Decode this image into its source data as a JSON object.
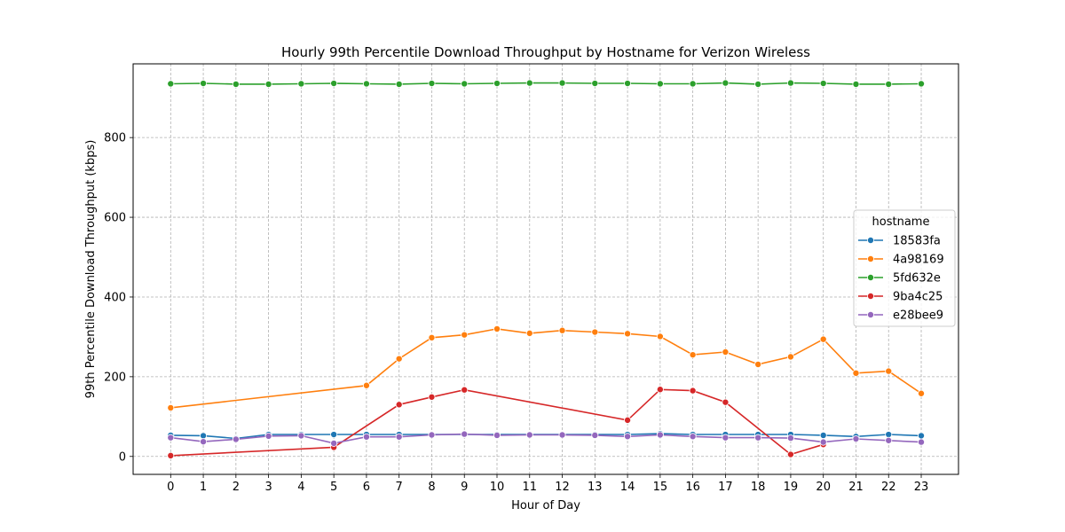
{
  "chart_data": {
    "type": "line",
    "title": "Hourly 99th Percentile Download Throughput by Hostname for Verizon Wireless",
    "xlabel": "Hour of Day",
    "ylabel": "99th Percentile Download Throughput (kbps)",
    "categories": [
      0,
      1,
      2,
      3,
      4,
      5,
      6,
      7,
      8,
      9,
      10,
      11,
      12,
      13,
      14,
      15,
      16,
      17,
      18,
      19,
      20,
      21,
      22,
      23
    ],
    "ylim": [
      -45,
      985
    ],
    "yticks": [
      0,
      200,
      400,
      600,
      800
    ],
    "grid": true,
    "legend": {
      "title": "hostname",
      "placement": "right"
    },
    "series": [
      {
        "name": "18583fa",
        "color": "#1f77b4",
        "points": [
          [
            0,
            53
          ],
          [
            1,
            52
          ],
          [
            2,
            45
          ],
          [
            3,
            55
          ],
          [
            4,
            55
          ],
          [
            5,
            55
          ],
          [
            6,
            55
          ],
          [
            7,
            55
          ],
          [
            8,
            55
          ],
          [
            9,
            55
          ],
          [
            10,
            55
          ],
          [
            11,
            55
          ],
          [
            12,
            55
          ],
          [
            13,
            55
          ],
          [
            14,
            55
          ],
          [
            15,
            57
          ],
          [
            16,
            55
          ],
          [
            17,
            55
          ],
          [
            18,
            55
          ],
          [
            19,
            55
          ],
          [
            20,
            53
          ],
          [
            21,
            50
          ],
          [
            22,
            55
          ],
          [
            23,
            52
          ]
        ]
      },
      {
        "name": "4a98169",
        "color": "#ff7f0e",
        "points": [
          [
            0,
            122
          ],
          [
            6,
            178
          ],
          [
            7,
            245
          ],
          [
            8,
            298
          ],
          [
            9,
            305
          ],
          [
            10,
            320
          ],
          [
            11,
            309
          ],
          [
            12,
            316
          ],
          [
            13,
            312
          ],
          [
            14,
            308
          ],
          [
            15,
            301
          ],
          [
            16,
            255
          ],
          [
            17,
            262
          ],
          [
            18,
            231
          ],
          [
            19,
            250
          ],
          [
            20,
            294
          ],
          [
            21,
            209
          ],
          [
            22,
            214
          ],
          [
            23,
            158
          ]
        ]
      },
      {
        "name": "5fd632e",
        "color": "#2ca02c",
        "points": [
          [
            0,
            935
          ],
          [
            1,
            936
          ],
          [
            2,
            934
          ],
          [
            3,
            934
          ],
          [
            4,
            935
          ],
          [
            5,
            936
          ],
          [
            6,
            935
          ],
          [
            7,
            934
          ],
          [
            8,
            936
          ],
          [
            9,
            935
          ],
          [
            10,
            936
          ],
          [
            11,
            937
          ],
          [
            12,
            937
          ],
          [
            13,
            936
          ],
          [
            14,
            936
          ],
          [
            15,
            935
          ],
          [
            16,
            935
          ],
          [
            17,
            937
          ],
          [
            18,
            934
          ],
          [
            19,
            937
          ],
          [
            20,
            936
          ],
          [
            21,
            934
          ],
          [
            22,
            934
          ],
          [
            23,
            935
          ]
        ]
      },
      {
        "name": "9ba4c25",
        "color": "#d62728",
        "points": [
          [
            0,
            2
          ],
          [
            5,
            23
          ],
          [
            7,
            130
          ],
          [
            8,
            149
          ],
          [
            9,
            167
          ],
          [
            14,
            91
          ],
          [
            15,
            168
          ],
          [
            16,
            165
          ],
          [
            17,
            136
          ],
          [
            19,
            5
          ],
          [
            20,
            30
          ]
        ]
      },
      {
        "name": "e28bee9",
        "color": "#9467bd",
        "points": [
          [
            0,
            47
          ],
          [
            1,
            37
          ],
          [
            2,
            43
          ],
          [
            3,
            51
          ],
          [
            4,
            52
          ],
          [
            5,
            33
          ],
          [
            6,
            49
          ],
          [
            7,
            49
          ],
          [
            8,
            54
          ],
          [
            9,
            56
          ],
          [
            10,
            53
          ],
          [
            11,
            54
          ],
          [
            12,
            54
          ],
          [
            13,
            53
          ],
          [
            14,
            50
          ],
          [
            15,
            54
          ],
          [
            16,
            50
          ],
          [
            17,
            47
          ],
          [
            18,
            47
          ],
          [
            19,
            46
          ],
          [
            20,
            36
          ],
          [
            21,
            44
          ],
          [
            22,
            40
          ],
          [
            23,
            36
          ]
        ]
      }
    ]
  }
}
